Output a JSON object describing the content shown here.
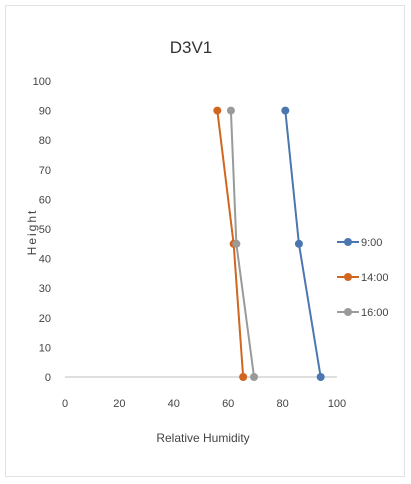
{
  "chart_data": {
    "type": "line",
    "title": "D3V1",
    "xlabel": "Relative Humidity",
    "ylabel": "Height",
    "xlim": [
      0,
      100
    ],
    "ylim": [
      0,
      100
    ],
    "x_ticks": [
      "0",
      "20",
      "40",
      "60",
      "80",
      "100"
    ],
    "y_ticks": [
      "0",
      "10",
      "20",
      "30",
      "40",
      "50",
      "60",
      "70",
      "80",
      "90",
      "100"
    ],
    "grid": false,
    "legend": "right",
    "series": [
      {
        "name": "9:00",
        "color": "#4a77b0",
        "points": [
          [
            94,
            0
          ],
          [
            86,
            45
          ],
          [
            81,
            90
          ]
        ]
      },
      {
        "name": "14:00",
        "color": "#d0661f",
        "points": [
          [
            65.5,
            0
          ],
          [
            62,
            45
          ],
          [
            56,
            90
          ]
        ]
      },
      {
        "name": "16:00",
        "color": "#9a9a9a",
        "points": [
          [
            69.5,
            0
          ],
          [
            63,
            45
          ],
          [
            61,
            90
          ]
        ]
      }
    ]
  }
}
